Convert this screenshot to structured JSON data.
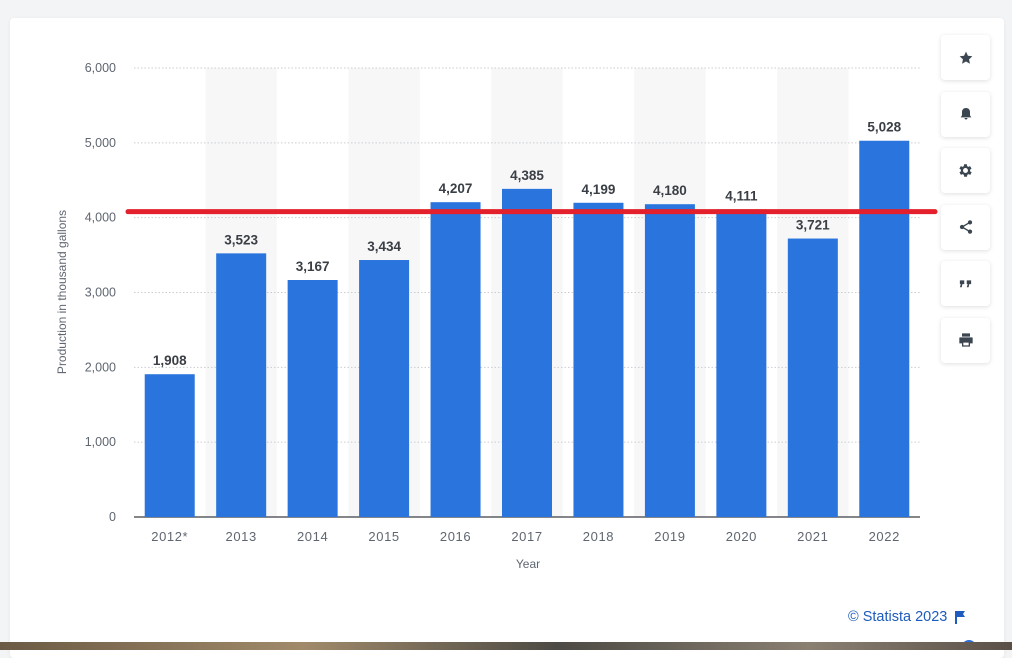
{
  "chart_data": {
    "type": "bar",
    "categories": [
      "2012*",
      "2013",
      "2014",
      "2015",
      "2016",
      "2017",
      "2018",
      "2019",
      "2020",
      "2021",
      "2022"
    ],
    "values": [
      1908,
      3523,
      3167,
      3434,
      4207,
      4385,
      4199,
      4180,
      4111,
      3721,
      5028
    ],
    "value_labels": [
      "1,908",
      "3,523",
      "3,167",
      "3,434",
      "4,207",
      "4,385",
      "4,199",
      "4,180",
      "4,111",
      "3,721",
      "5,028"
    ],
    "title": "",
    "xlabel": "Year",
    "ylabel": "Production in thousand gallons",
    "ylim": [
      0,
      6000
    ],
    "yticks": [
      0,
      1000,
      2000,
      3000,
      4000,
      5000,
      6000
    ],
    "ytick_labels": [
      "0",
      "1,000",
      "2,000",
      "3,000",
      "4,000",
      "5,000",
      "6,000"
    ],
    "grid": true,
    "legend": "none",
    "bar_color": "#2a74dd",
    "annotation_line": {
      "value": 4080,
      "color": "#e3202b"
    }
  },
  "toolbar": {
    "buttons": [
      {
        "icon": "star-icon"
      },
      {
        "icon": "bell-icon"
      },
      {
        "icon": "gear-icon"
      },
      {
        "icon": "share-icon"
      },
      {
        "icon": "quote-icon"
      },
      {
        "icon": "print-icon"
      }
    ]
  },
  "footer": {
    "credit": "© Statista 2023"
  },
  "colors": {
    "accent": "#2a74dd",
    "icon": "#3c4650",
    "link": "#1d5bbf",
    "annotation": "#e3202b"
  }
}
